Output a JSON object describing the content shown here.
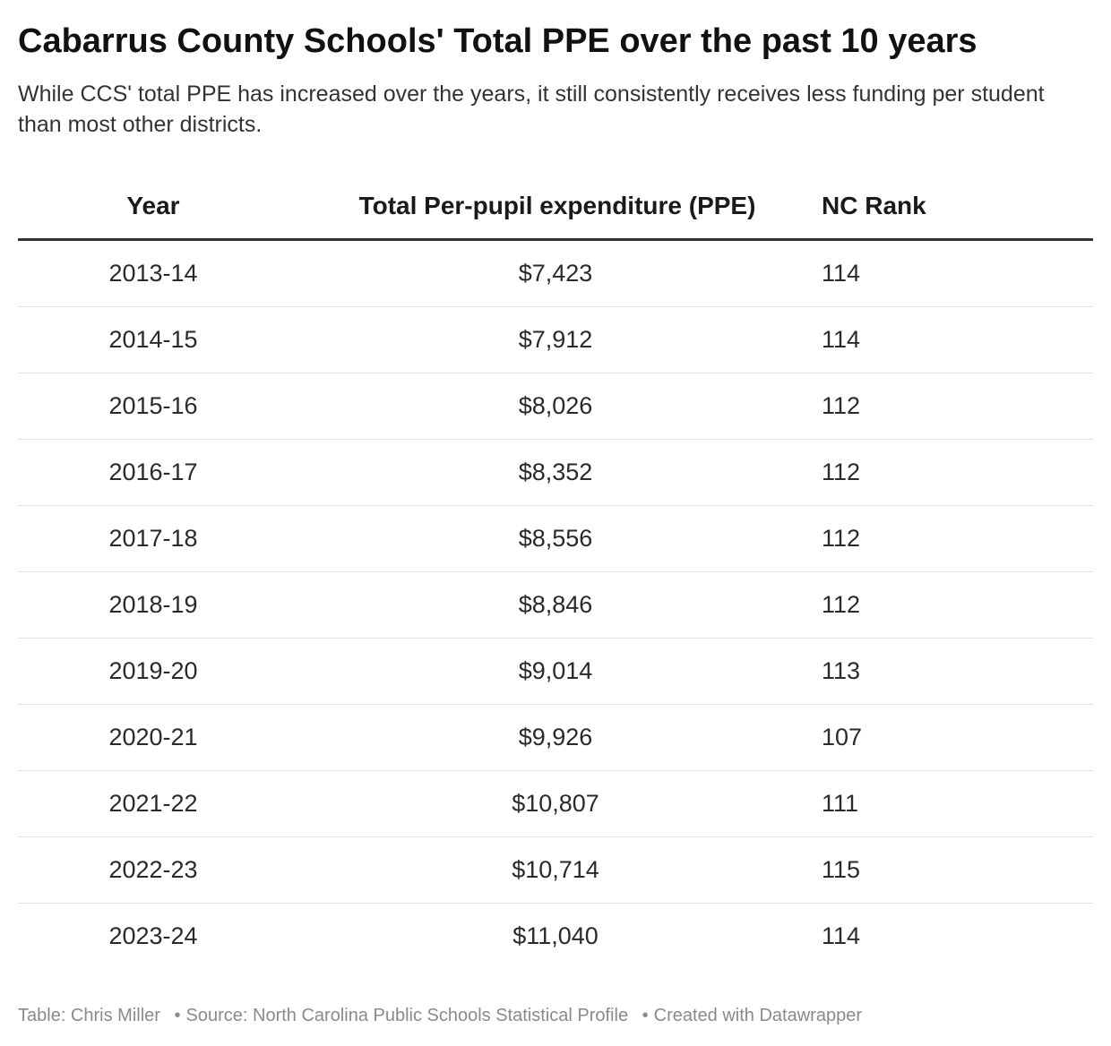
{
  "title": "Cabarrus County Schools' Total PPE over the past 10 years",
  "subtitle": "While CCS' total PPE has increased over the years, it still consistently receives less funding per student than most other districts.",
  "chart_data": {
    "type": "table",
    "columns": [
      "Year",
      "Total Per-pupil expenditure (PPE)",
      "NC Rank"
    ],
    "rows": [
      [
        "2013-14",
        "$7,423",
        "114"
      ],
      [
        "2014-15",
        "$7,912",
        "114"
      ],
      [
        "2015-16",
        "$8,026",
        "112"
      ],
      [
        "2016-17",
        "$8,352",
        "112"
      ],
      [
        "2017-18",
        "$8,556",
        "112"
      ],
      [
        "2018-19",
        "$8,846",
        "112"
      ],
      [
        "2019-20",
        "$9,014",
        "113"
      ],
      [
        "2020-21",
        "$9,926",
        "107"
      ],
      [
        "2021-22",
        "$10,807",
        "111"
      ],
      [
        "2022-23",
        "$10,714",
        "115"
      ],
      [
        "2023-24",
        "$11,040",
        "114"
      ]
    ]
  },
  "footer": {
    "byline": "Table: Chris Miller",
    "source": "Source: North Carolina Public Schools Statistical Profile",
    "credit": "Created with Datawrapper",
    "separator": "•"
  }
}
